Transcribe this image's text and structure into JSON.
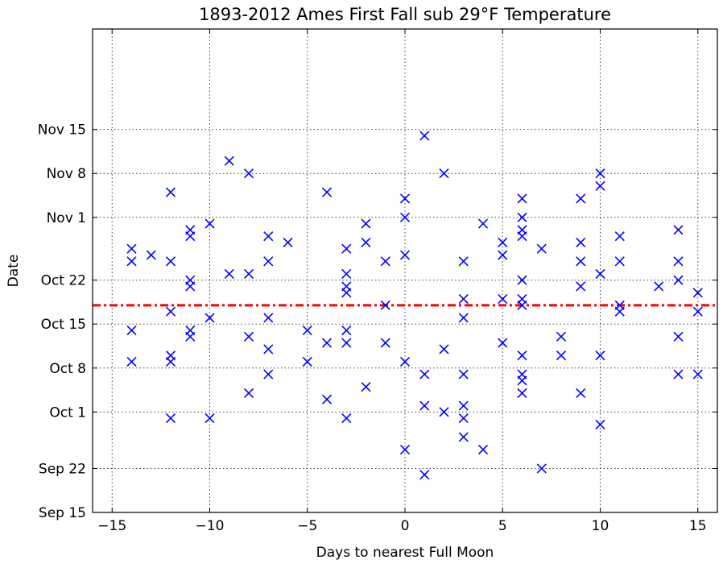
{
  "chart_data": {
    "type": "scatter",
    "title": "1893-2012 Ames First Fall sub 29°F Temperature",
    "xlabel": "Days to nearest Full Moon",
    "ylabel": "Date",
    "xlim": [
      -16,
      16
    ],
    "ylim": [
      "Sep 15",
      "Dec 1"
    ],
    "xticks": [
      -15,
      -10,
      -5,
      0,
      5,
      10,
      15
    ],
    "xtick_labels": [
      "−15",
      "−10",
      "−5",
      "0",
      "5",
      "10",
      "15"
    ],
    "yticks": [
      "Sep 15",
      "Sep 22",
      "Oct 1",
      "Oct 8",
      "Oct 15",
      "Oct 22",
      "Nov 1",
      "Nov 8",
      "Nov 15"
    ],
    "ytick_labels": [
      "Sep 15",
      "Sep 22",
      "Oct 1",
      "Oct 8",
      "Oct 15",
      "Oct 22",
      "Nov 1",
      "Nov 8",
      "Nov 15"
    ],
    "grid": true,
    "marker": "x",
    "marker_color": "#0000ff",
    "reference_line": {
      "date": "Oct 18",
      "style": "dash-dot",
      "color": "#ff0000"
    },
    "points": [
      [
        -14,
        "Oct 27"
      ],
      [
        -14,
        "Oct 25"
      ],
      [
        -14,
        "Oct 14"
      ],
      [
        -14,
        "Oct 9"
      ],
      [
        -13,
        "Oct 26"
      ],
      [
        -12,
        "Nov 5"
      ],
      [
        -12,
        "Oct 25"
      ],
      [
        -12,
        "Oct 17"
      ],
      [
        -12,
        "Oct 10"
      ],
      [
        -12,
        "Oct 9"
      ],
      [
        -12,
        "Sep 30"
      ],
      [
        -11,
        "Oct 30"
      ],
      [
        -11,
        "Oct 29"
      ],
      [
        -11,
        "Oct 22"
      ],
      [
        -11,
        "Oct 21"
      ],
      [
        -11,
        "Oct 14"
      ],
      [
        -11,
        "Oct 13"
      ],
      [
        -10,
        "Oct 31"
      ],
      [
        -10,
        "Oct 16"
      ],
      [
        -10,
        "Sep 30"
      ],
      [
        -9,
        "Oct 23"
      ],
      [
        -9,
        "Nov 10"
      ],
      [
        -8,
        "Nov 8"
      ],
      [
        -8,
        "Oct 23"
      ],
      [
        -8,
        "Oct 13"
      ],
      [
        -8,
        "Oct 4"
      ],
      [
        -7,
        "Oct 29"
      ],
      [
        -7,
        "Oct 25"
      ],
      [
        -7,
        "Oct 16"
      ],
      [
        -7,
        "Oct 11"
      ],
      [
        -7,
        "Oct 7"
      ],
      [
        -6,
        "Oct 28"
      ],
      [
        -5,
        "Oct 14"
      ],
      [
        -5,
        "Oct 9"
      ],
      [
        -4,
        "Nov 5"
      ],
      [
        -4,
        "Oct 12"
      ],
      [
        -4,
        "Oct 3"
      ],
      [
        -3,
        "Oct 27"
      ],
      [
        -3,
        "Oct 23"
      ],
      [
        -3,
        "Oct 21"
      ],
      [
        -3,
        "Oct 20"
      ],
      [
        -3,
        "Oct 14"
      ],
      [
        -3,
        "Oct 12"
      ],
      [
        -3,
        "Sep 30"
      ],
      [
        -2,
        "Oct 31"
      ],
      [
        -2,
        "Oct 28"
      ],
      [
        -2,
        "Oct 5"
      ],
      [
        -1,
        "Oct 25"
      ],
      [
        -1,
        "Oct 18"
      ],
      [
        -1,
        "Oct 12"
      ],
      [
        0,
        "Nov 4"
      ],
      [
        0,
        "Nov 1"
      ],
      [
        0,
        "Oct 26"
      ],
      [
        0,
        "Oct 9"
      ],
      [
        0,
        "Sep 25"
      ],
      [
        1,
        "Nov 14"
      ],
      [
        1,
        "Oct 7"
      ],
      [
        1,
        "Oct 2"
      ],
      [
        1,
        "Sep 21"
      ],
      [
        2,
        "Nov 8"
      ],
      [
        2,
        "Oct 11"
      ],
      [
        2,
        "Oct 1"
      ],
      [
        3,
        "Oct 25"
      ],
      [
        3,
        "Oct 19"
      ],
      [
        3,
        "Oct 16"
      ],
      [
        3,
        "Oct 7"
      ],
      [
        3,
        "Oct 2"
      ],
      [
        3,
        "Sep 30"
      ],
      [
        3,
        "Sep 27"
      ],
      [
        4,
        "Oct 31"
      ],
      [
        4,
        "Sep 25"
      ],
      [
        5,
        "Oct 28"
      ],
      [
        5,
        "Oct 26"
      ],
      [
        5,
        "Oct 19"
      ],
      [
        5,
        "Oct 12"
      ],
      [
        6,
        "Nov 4"
      ],
      [
        6,
        "Nov 1"
      ],
      [
        6,
        "Oct 30"
      ],
      [
        6,
        "Oct 29"
      ],
      [
        6,
        "Oct 22"
      ],
      [
        6,
        "Oct 19"
      ],
      [
        6,
        "Oct 18"
      ],
      [
        6,
        "Oct 10"
      ],
      [
        6,
        "Oct 7"
      ],
      [
        6,
        "Oct 6"
      ],
      [
        6,
        "Oct 4"
      ],
      [
        7,
        "Oct 27"
      ],
      [
        7,
        "Sep 22"
      ],
      [
        8,
        "Oct 13"
      ],
      [
        8,
        "Oct 10"
      ],
      [
        9,
        "Nov 4"
      ],
      [
        9,
        "Oct 28"
      ],
      [
        9,
        "Oct 25"
      ],
      [
        9,
        "Oct 21"
      ],
      [
        9,
        "Oct 4"
      ],
      [
        10,
        "Nov 8"
      ],
      [
        10,
        "Nov 6"
      ],
      [
        10,
        "Oct 23"
      ],
      [
        10,
        "Oct 10"
      ],
      [
        10,
        "Sep 29"
      ],
      [
        11,
        "Oct 29"
      ],
      [
        11,
        "Oct 25"
      ],
      [
        11,
        "Oct 18"
      ],
      [
        11,
        "Oct 17"
      ],
      [
        13,
        "Oct 21"
      ],
      [
        14,
        "Oct 30"
      ],
      [
        14,
        "Oct 25"
      ],
      [
        14,
        "Oct 22"
      ],
      [
        14,
        "Oct 13"
      ],
      [
        14,
        "Oct 7"
      ],
      [
        15,
        "Oct 20"
      ],
      [
        15,
        "Oct 17"
      ],
      [
        15,
        "Oct 7"
      ]
    ]
  }
}
